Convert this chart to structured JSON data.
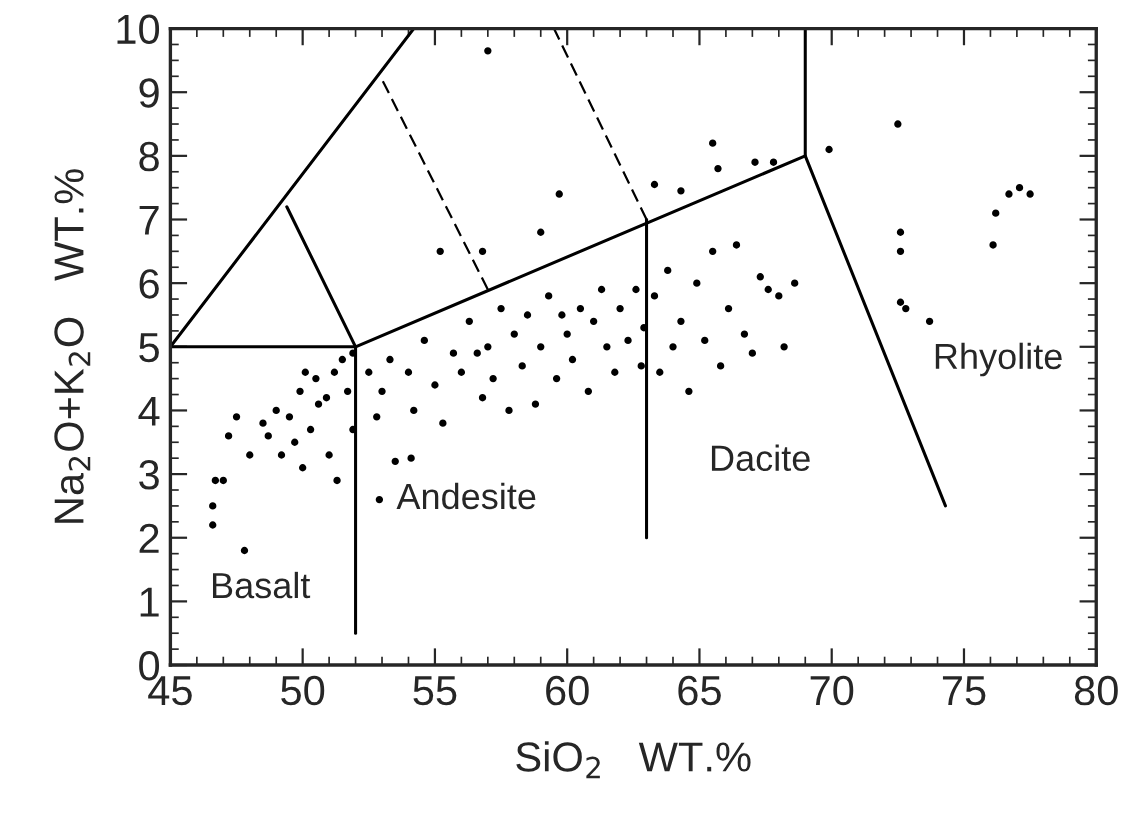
{
  "chart_data": {
    "type": "scatter",
    "xlabel": "SiO$_{2}$   WT.%",
    "ylabel": "Na$_{2}$O+K$_{2}$O   WT.%",
    "xlim": [
      45,
      80
    ],
    "xticks": [
      45,
      50,
      55,
      60,
      65,
      70,
      75,
      80
    ],
    "ylim": [
      0,
      10
    ],
    "yticks": [
      0,
      1,
      2,
      3,
      4,
      5,
      6,
      7,
      8,
      9,
      10
    ],
    "grid": false,
    "series": [
      {
        "marker": "circle",
        "color": "#000000",
        "x": [
          46.6,
          46.6,
          46.7,
          47,
          47.8,
          47.2,
          47.5,
          48,
          48.5,
          48.7,
          49,
          49.2,
          49.5,
          49.7,
          49.9,
          50,
          50.3,
          50.5,
          50.6,
          50.9,
          51,
          51.2,
          51.5,
          51.7,
          51.9,
          51.9,
          51.3,
          50.1,
          52.5,
          52.8,
          53,
          53.3,
          53.5,
          54,
          54.2,
          54.6,
          55,
          55.3,
          55.7,
          56,
          56.3,
          56.6,
          56.8,
          57,
          57.2,
          57.5,
          57.8,
          58,
          58.3,
          58.5,
          58.8,
          59,
          59.3,
          59.6,
          59.8,
          60,
          60.2,
          60.5,
          60.8,
          61,
          61.3,
          61.5,
          61.8,
          62,
          62.3,
          62.6,
          62.8,
          62.9,
          52.9,
          54.1,
          59.7,
          55.2,
          59,
          56.8,
          57,
          63.3,
          63.5,
          63.8,
          64,
          64.3,
          64.6,
          64.9,
          65.2,
          65.5,
          65.8,
          66.1,
          66.4,
          66.7,
          67,
          67.3,
          67.6,
          68,
          68.2,
          68.6,
          65.5,
          67.1,
          67.8,
          63.3,
          64.3,
          65.7,
          72.5,
          69.9,
          72.6,
          72.6,
          72.6,
          72.8,
          73.7,
          76.1,
          76.2,
          76.7,
          77.1,
          77.5
        ],
        "values": [
          2.2,
          2.5,
          2.9,
          2.9,
          1.8,
          3.6,
          3.9,
          3.3,
          3.8,
          3.6,
          4.0,
          3.3,
          3.9,
          3.5,
          4.3,
          3.1,
          3.7,
          4.5,
          4.1,
          4.2,
          3.3,
          4.6,
          4.8,
          4.3,
          3.7,
          4.9,
          2.9,
          4.6,
          4.6,
          3.9,
          4.3,
          4.8,
          3.2,
          4.6,
          4.0,
          5.1,
          4.4,
          3.8,
          4.9,
          4.6,
          5.4,
          4.9,
          4.2,
          5.0,
          4.5,
          5.6,
          4.0,
          5.2,
          4.7,
          5.5,
          4.1,
          5.0,
          5.8,
          4.5,
          5.5,
          5.2,
          4.8,
          5.6,
          4.3,
          5.4,
          5.9,
          5.0,
          4.6,
          5.6,
          5.1,
          5.9,
          4.7,
          5.3,
          2.6,
          3.25,
          7.4,
          6.5,
          6.8,
          6.5,
          9.65,
          5.8,
          4.6,
          6.2,
          5.0,
          5.4,
          4.3,
          6.0,
          5.1,
          6.5,
          4.7,
          5.6,
          6.6,
          5.2,
          4.9,
          6.1,
          5.9,
          5.8,
          5.0,
          6.0,
          8.2,
          7.9,
          7.9,
          7.55,
          7.45,
          7.8,
          8.5,
          8.1,
          6.8,
          6.5,
          5.7,
          5.6,
          5.4,
          6.6,
          7.1,
          7.4,
          7.5,
          7.4
        ]
      },
      {
        "type": "line",
        "color": "#000000",
        "line_style": "solid",
        "x": [
          45,
          52,
          69
        ],
        "values": [
          5,
          5,
          8
        ]
      },
      {
        "type": "line",
        "color": "#000000",
        "line_style": "solid",
        "x": [
          45,
          54.2
        ],
        "values": [
          5,
          10
        ]
      },
      {
        "type": "line",
        "color": "#000000",
        "line_style": "solid",
        "x": [
          52,
          52
        ],
        "values": [
          5,
          0.5
        ]
      },
      {
        "type": "line",
        "color": "#000000",
        "line_style": "solid",
        "x": [
          63,
          63
        ],
        "values": [
          7,
          2
        ]
      },
      {
        "type": "line",
        "color": "#000000",
        "line_style": "solid",
        "x": [
          69,
          69,
          74.3
        ],
        "values": [
          10,
          8,
          2.5
        ]
      },
      {
        "type": "line",
        "color": "#000000",
        "line_style": "solid",
        "x": [
          52,
          49.4
        ],
        "values": [
          5,
          7.2
        ]
      },
      {
        "type": "line",
        "color": "#000000",
        "line_style": "dashed",
        "x": [
          57,
          53
        ],
        "values": [
          5.9,
          9.2
        ]
      },
      {
        "type": "line",
        "color": "#000000",
        "line_style": "dashed",
        "x": [
          63,
          59.5
        ],
        "values": [
          7,
          10
        ]
      }
    ],
    "annotations": [
      "Basalt",
      "Andesite",
      "Dacite",
      "Rhyolite"
    ]
  }
}
